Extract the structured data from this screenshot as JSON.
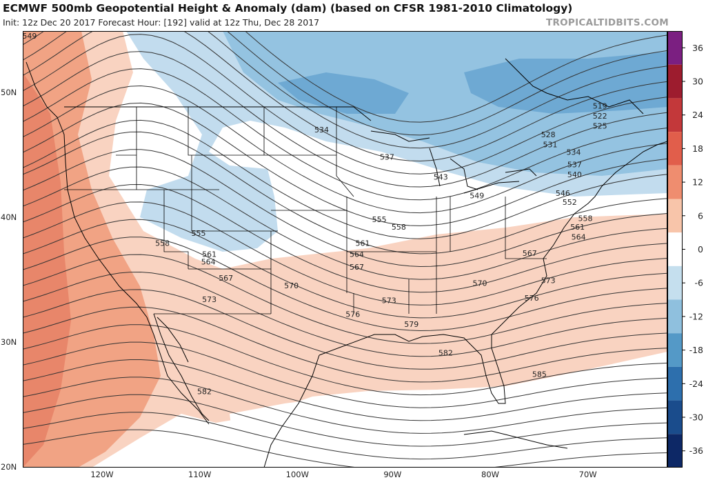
{
  "header": {
    "title": "ECMWF 500mb Geopotential Height & Anomaly (dam) (based on CFSR 1981-2010 Climatology)",
    "subtitle": "Init: 12z Dec 20 2017   Forecast Hour: [192]   valid at 12z Thu, Dec 28 2017",
    "brand": "TROPICALTIDBITS.COM"
  },
  "map": {
    "lon_range": [
      -128,
      -62
    ],
    "lat_range": [
      20,
      55
    ],
    "lon_ticks": [
      {
        "value": -120,
        "label": "120W"
      },
      {
        "value": -110,
        "label": "110W"
      },
      {
        "value": -100,
        "label": "100W"
      },
      {
        "value": -90,
        "label": "90W"
      },
      {
        "value": -80,
        "label": "80W"
      },
      {
        "value": -70,
        "label": "70W"
      }
    ],
    "lat_ticks": [
      {
        "value": 50,
        "label": "50N"
      },
      {
        "value": 40,
        "label": "40N"
      },
      {
        "value": 30,
        "label": "30N"
      },
      {
        "value": 20,
        "label": "20N"
      }
    ],
    "contour_labels": [
      {
        "text": "549",
        "lon": -127.3,
        "lat": 54.6
      },
      {
        "text": "519",
        "lon": -68.9,
        "lat": 49.0
      },
      {
        "text": "522",
        "lon": -68.9,
        "lat": 48.2
      },
      {
        "text": "525",
        "lon": -68.9,
        "lat": 47.4
      },
      {
        "text": "528",
        "lon": -74.2,
        "lat": 46.7
      },
      {
        "text": "531",
        "lon": -74.0,
        "lat": 45.9
      },
      {
        "text": "534",
        "lon": -97.4,
        "lat": 47.1
      },
      {
        "text": "534",
        "lon": -71.6,
        "lat": 45.3
      },
      {
        "text": "537",
        "lon": -90.7,
        "lat": 44.9
      },
      {
        "text": "537",
        "lon": -71.5,
        "lat": 44.3
      },
      {
        "text": "540",
        "lon": -71.5,
        "lat": 43.5
      },
      {
        "text": "543",
        "lon": -85.2,
        "lat": 43.3
      },
      {
        "text": "546",
        "lon": -72.7,
        "lat": 42.0
      },
      {
        "text": "549",
        "lon": -81.5,
        "lat": 41.8
      },
      {
        "text": "552",
        "lon": -72.0,
        "lat": 41.3
      },
      {
        "text": "555",
        "lon": -110.0,
        "lat": 38.8
      },
      {
        "text": "555",
        "lon": -91.5,
        "lat": 39.9
      },
      {
        "text": "558",
        "lon": -113.7,
        "lat": 38.0
      },
      {
        "text": "558",
        "lon": -89.5,
        "lat": 39.3
      },
      {
        "text": "558",
        "lon": -70.4,
        "lat": 40.0
      },
      {
        "text": "561",
        "lon": -108.9,
        "lat": 37.1
      },
      {
        "text": "561",
        "lon": -93.2,
        "lat": 38.0
      },
      {
        "text": "561",
        "lon": -71.2,
        "lat": 39.3
      },
      {
        "text": "564",
        "lon": -109.0,
        "lat": 36.5
      },
      {
        "text": "564",
        "lon": -93.8,
        "lat": 37.1
      },
      {
        "text": "564",
        "lon": -71.1,
        "lat": 38.5
      },
      {
        "text": "567",
        "lon": -107.2,
        "lat": 35.2
      },
      {
        "text": "567",
        "lon": -93.8,
        "lat": 36.1
      },
      {
        "text": "567",
        "lon": -76.1,
        "lat": 37.2
      },
      {
        "text": "570",
        "lon": -100.5,
        "lat": 34.6
      },
      {
        "text": "570",
        "lon": -81.2,
        "lat": 34.8
      },
      {
        "text": "573",
        "lon": -108.9,
        "lat": 33.5
      },
      {
        "text": "573",
        "lon": -90.5,
        "lat": 33.4
      },
      {
        "text": "573",
        "lon": -74.2,
        "lat": 35.0
      },
      {
        "text": "576",
        "lon": -94.2,
        "lat": 32.3
      },
      {
        "text": "576",
        "lon": -75.9,
        "lat": 33.6
      },
      {
        "text": "579",
        "lon": -88.2,
        "lat": 31.5
      },
      {
        "text": "582",
        "lon": -84.7,
        "lat": 29.2
      },
      {
        "text": "582",
        "lon": -109.4,
        "lat": 26.1
      },
      {
        "text": "585",
        "lon": -75.1,
        "lat": 27.5
      }
    ]
  },
  "colorbar": {
    "title": "",
    "min": -39,
    "max": 39,
    "ticks": [
      36,
      30,
      24,
      18,
      12,
      6,
      0,
      -6,
      -12,
      -18,
      -24,
      -30,
      -36
    ],
    "bands": [
      {
        "from": 33,
        "to": 39,
        "color": "#7b1f81"
      },
      {
        "from": 27,
        "to": 33,
        "color": "#9d1c2e"
      },
      {
        "from": 21,
        "to": 27,
        "color": "#c3383a"
      },
      {
        "from": 15,
        "to": 21,
        "color": "#e15e4b"
      },
      {
        "from": 9,
        "to": 15,
        "color": "#ef8d6f"
      },
      {
        "from": 3,
        "to": 9,
        "color": "#f8c5aa"
      },
      {
        "from": -3,
        "to": 3,
        "color": "#ffffff"
      },
      {
        "from": -9,
        "to": -3,
        "color": "#c5dfee"
      },
      {
        "from": -15,
        "to": -9,
        "color": "#8fc0de"
      },
      {
        "from": -21,
        "to": -15,
        "color": "#5499c7"
      },
      {
        "from": -27,
        "to": -21,
        "color": "#2d6fad"
      },
      {
        "from": -33,
        "to": -27,
        "color": "#1a4c8c"
      },
      {
        "from": -39,
        "to": -33,
        "color": "#0d2866"
      }
    ]
  },
  "colors": {
    "anom_pos_light": "#f9d3c1",
    "anom_pos_mid": "#f1a384",
    "anom_pos_strong": "#e8866a",
    "anom_neg_light": "#c2dcee",
    "anom_neg_mid": "#94c3e1",
    "anom_neg_strong": "#6ea9d3",
    "contour": "#333333",
    "coast": "#000000"
  }
}
